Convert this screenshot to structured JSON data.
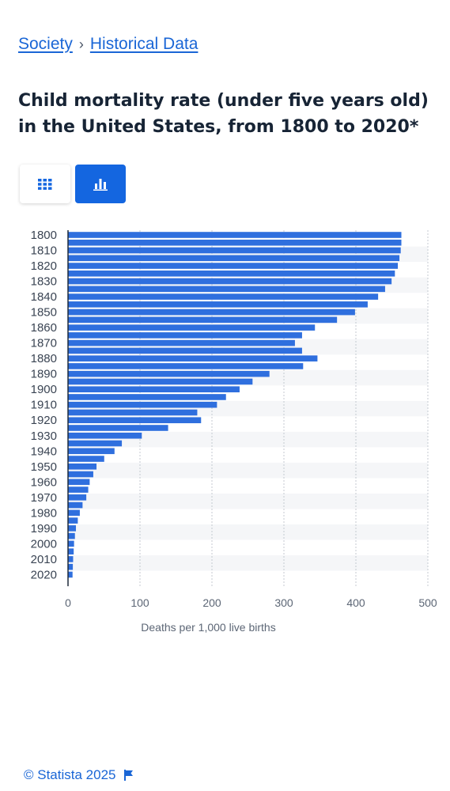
{
  "breadcrumb": {
    "items": [
      "Society",
      "Historical Data"
    ],
    "separator": "›"
  },
  "title": "Child mortality rate (under five years old) in the United States, from 1800 to 2020*",
  "view_toggle": {
    "table_icon": "table-grid-icon",
    "chart_icon": "bar-chart-icon",
    "active": "chart"
  },
  "chart_data": {
    "type": "bar",
    "orientation": "horizontal",
    "title": "",
    "xlabel": "Deaths per 1,000 live births",
    "ylabel": "",
    "xlim": [
      0,
      500
    ],
    "xticks": [
      0,
      100,
      200,
      300,
      400,
      500
    ],
    "grid": true,
    "bar_color": "#2f6fde",
    "categories": [
      1800,
      1805,
      1810,
      1815,
      1820,
      1825,
      1830,
      1835,
      1840,
      1845,
      1850,
      1855,
      1860,
      1865,
      1870,
      1875,
      1880,
      1885,
      1890,
      1895,
      1900,
      1905,
      1910,
      1915,
      1920,
      1925,
      1930,
      1935,
      1940,
      1945,
      1950,
      1955,
      1960,
      1965,
      1970,
      1975,
      1980,
      1985,
      1990,
      1995,
      2000,
      2005,
      2010,
      2015,
      2020
    ],
    "category_labels_shown": [
      "1800",
      "1810",
      "1820",
      "1830",
      "1840",
      "1850",
      "1860",
      "1870",
      "1880",
      "1890",
      "1900",
      "1910",
      "1920",
      "1930",
      "1940",
      "1950",
      "1960",
      "1970",
      "1980",
      "1990",
      "2000",
      "2010",
      "2020"
    ],
    "values": [
      463.2,
      463.2,
      462.3,
      460.5,
      458.3,
      454.2,
      449.6,
      440.6,
      430.9,
      416.4,
      398.8,
      373.8,
      343.1,
      325.2,
      315.3,
      325.2,
      346.6,
      326.7,
      279.9,
      256.4,
      238.4,
      219.5,
      207,
      179.6,
      184.9,
      139.1,
      102.5,
      74.8,
      64.6,
      50.3,
      39.6,
      35.1,
      30.1,
      28.1,
      25.4,
      20.2,
      16.4,
      13.6,
      11,
      9.6,
      8.4,
      7.9,
      7.1,
      6.7,
      6.3
    ]
  },
  "footer": {
    "copyright": "© Statista 2025",
    "flag_icon": "flag-icon"
  }
}
